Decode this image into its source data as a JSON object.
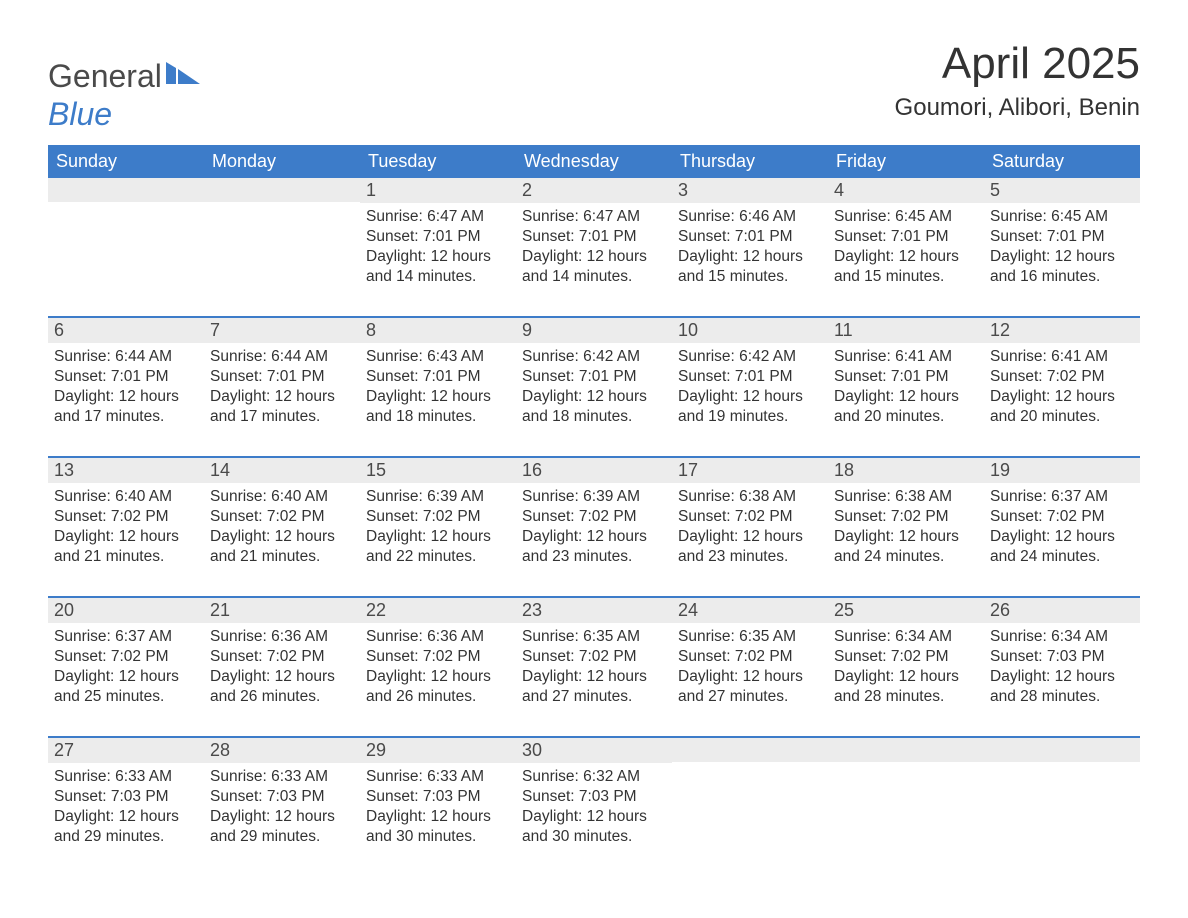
{
  "brand": {
    "part1": "General",
    "part2": "Blue",
    "logo_color": "#3d7cc9",
    "text_color": "#4a4a4a"
  },
  "title": "April 2025",
  "location": "Goumori, Alibori, Benin",
  "colors": {
    "header_bg": "#3d7cc9",
    "header_text": "#ffffff",
    "daynum_bg": "#ececec",
    "body_text": "#333333",
    "rule": "#3d7cc9",
    "page_bg": "#ffffff"
  },
  "fonts": {
    "title_size_pt": 33,
    "location_size_pt": 18,
    "dayheader_size_pt": 14,
    "body_size_pt": 12
  },
  "day_headers": [
    "Sunday",
    "Monday",
    "Tuesday",
    "Wednesday",
    "Thursday",
    "Friday",
    "Saturday"
  ],
  "labels": {
    "sunrise": "Sunrise:",
    "sunset": "Sunset:",
    "daylight": "Daylight:"
  },
  "weeks": [
    [
      {
        "day": "",
        "sunrise": "",
        "sunset": "",
        "daylight": ""
      },
      {
        "day": "",
        "sunrise": "",
        "sunset": "",
        "daylight": ""
      },
      {
        "day": "1",
        "sunrise": "6:47 AM",
        "sunset": "7:01 PM",
        "daylight": "12 hours and 14 minutes."
      },
      {
        "day": "2",
        "sunrise": "6:47 AM",
        "sunset": "7:01 PM",
        "daylight": "12 hours and 14 minutes."
      },
      {
        "day": "3",
        "sunrise": "6:46 AM",
        "sunset": "7:01 PM",
        "daylight": "12 hours and 15 minutes."
      },
      {
        "day": "4",
        "sunrise": "6:45 AM",
        "sunset": "7:01 PM",
        "daylight": "12 hours and 15 minutes."
      },
      {
        "day": "5",
        "sunrise": "6:45 AM",
        "sunset": "7:01 PM",
        "daylight": "12 hours and 16 minutes."
      }
    ],
    [
      {
        "day": "6",
        "sunrise": "6:44 AM",
        "sunset": "7:01 PM",
        "daylight": "12 hours and 17 minutes."
      },
      {
        "day": "7",
        "sunrise": "6:44 AM",
        "sunset": "7:01 PM",
        "daylight": "12 hours and 17 minutes."
      },
      {
        "day": "8",
        "sunrise": "6:43 AM",
        "sunset": "7:01 PM",
        "daylight": "12 hours and 18 minutes."
      },
      {
        "day": "9",
        "sunrise": "6:42 AM",
        "sunset": "7:01 PM",
        "daylight": "12 hours and 18 minutes."
      },
      {
        "day": "10",
        "sunrise": "6:42 AM",
        "sunset": "7:01 PM",
        "daylight": "12 hours and 19 minutes."
      },
      {
        "day": "11",
        "sunrise": "6:41 AM",
        "sunset": "7:01 PM",
        "daylight": "12 hours and 20 minutes."
      },
      {
        "day": "12",
        "sunrise": "6:41 AM",
        "sunset": "7:02 PM",
        "daylight": "12 hours and 20 minutes."
      }
    ],
    [
      {
        "day": "13",
        "sunrise": "6:40 AM",
        "sunset": "7:02 PM",
        "daylight": "12 hours and 21 minutes."
      },
      {
        "day": "14",
        "sunrise": "6:40 AM",
        "sunset": "7:02 PM",
        "daylight": "12 hours and 21 minutes."
      },
      {
        "day": "15",
        "sunrise": "6:39 AM",
        "sunset": "7:02 PM",
        "daylight": "12 hours and 22 minutes."
      },
      {
        "day": "16",
        "sunrise": "6:39 AM",
        "sunset": "7:02 PM",
        "daylight": "12 hours and 23 minutes."
      },
      {
        "day": "17",
        "sunrise": "6:38 AM",
        "sunset": "7:02 PM",
        "daylight": "12 hours and 23 minutes."
      },
      {
        "day": "18",
        "sunrise": "6:38 AM",
        "sunset": "7:02 PM",
        "daylight": "12 hours and 24 minutes."
      },
      {
        "day": "19",
        "sunrise": "6:37 AM",
        "sunset": "7:02 PM",
        "daylight": "12 hours and 24 minutes."
      }
    ],
    [
      {
        "day": "20",
        "sunrise": "6:37 AM",
        "sunset": "7:02 PM",
        "daylight": "12 hours and 25 minutes."
      },
      {
        "day": "21",
        "sunrise": "6:36 AM",
        "sunset": "7:02 PM",
        "daylight": "12 hours and 26 minutes."
      },
      {
        "day": "22",
        "sunrise": "6:36 AM",
        "sunset": "7:02 PM",
        "daylight": "12 hours and 26 minutes."
      },
      {
        "day": "23",
        "sunrise": "6:35 AM",
        "sunset": "7:02 PM",
        "daylight": "12 hours and 27 minutes."
      },
      {
        "day": "24",
        "sunrise": "6:35 AM",
        "sunset": "7:02 PM",
        "daylight": "12 hours and 27 minutes."
      },
      {
        "day": "25",
        "sunrise": "6:34 AM",
        "sunset": "7:02 PM",
        "daylight": "12 hours and 28 minutes."
      },
      {
        "day": "26",
        "sunrise": "6:34 AM",
        "sunset": "7:03 PM",
        "daylight": "12 hours and 28 minutes."
      }
    ],
    [
      {
        "day": "27",
        "sunrise": "6:33 AM",
        "sunset": "7:03 PM",
        "daylight": "12 hours and 29 minutes."
      },
      {
        "day": "28",
        "sunrise": "6:33 AM",
        "sunset": "7:03 PM",
        "daylight": "12 hours and 29 minutes."
      },
      {
        "day": "29",
        "sunrise": "6:33 AM",
        "sunset": "7:03 PM",
        "daylight": "12 hours and 30 minutes."
      },
      {
        "day": "30",
        "sunrise": "6:32 AM",
        "sunset": "7:03 PM",
        "daylight": "12 hours and 30 minutes."
      },
      {
        "day": "",
        "sunrise": "",
        "sunset": "",
        "daylight": ""
      },
      {
        "day": "",
        "sunrise": "",
        "sunset": "",
        "daylight": ""
      },
      {
        "day": "",
        "sunrise": "",
        "sunset": "",
        "daylight": ""
      }
    ]
  ]
}
